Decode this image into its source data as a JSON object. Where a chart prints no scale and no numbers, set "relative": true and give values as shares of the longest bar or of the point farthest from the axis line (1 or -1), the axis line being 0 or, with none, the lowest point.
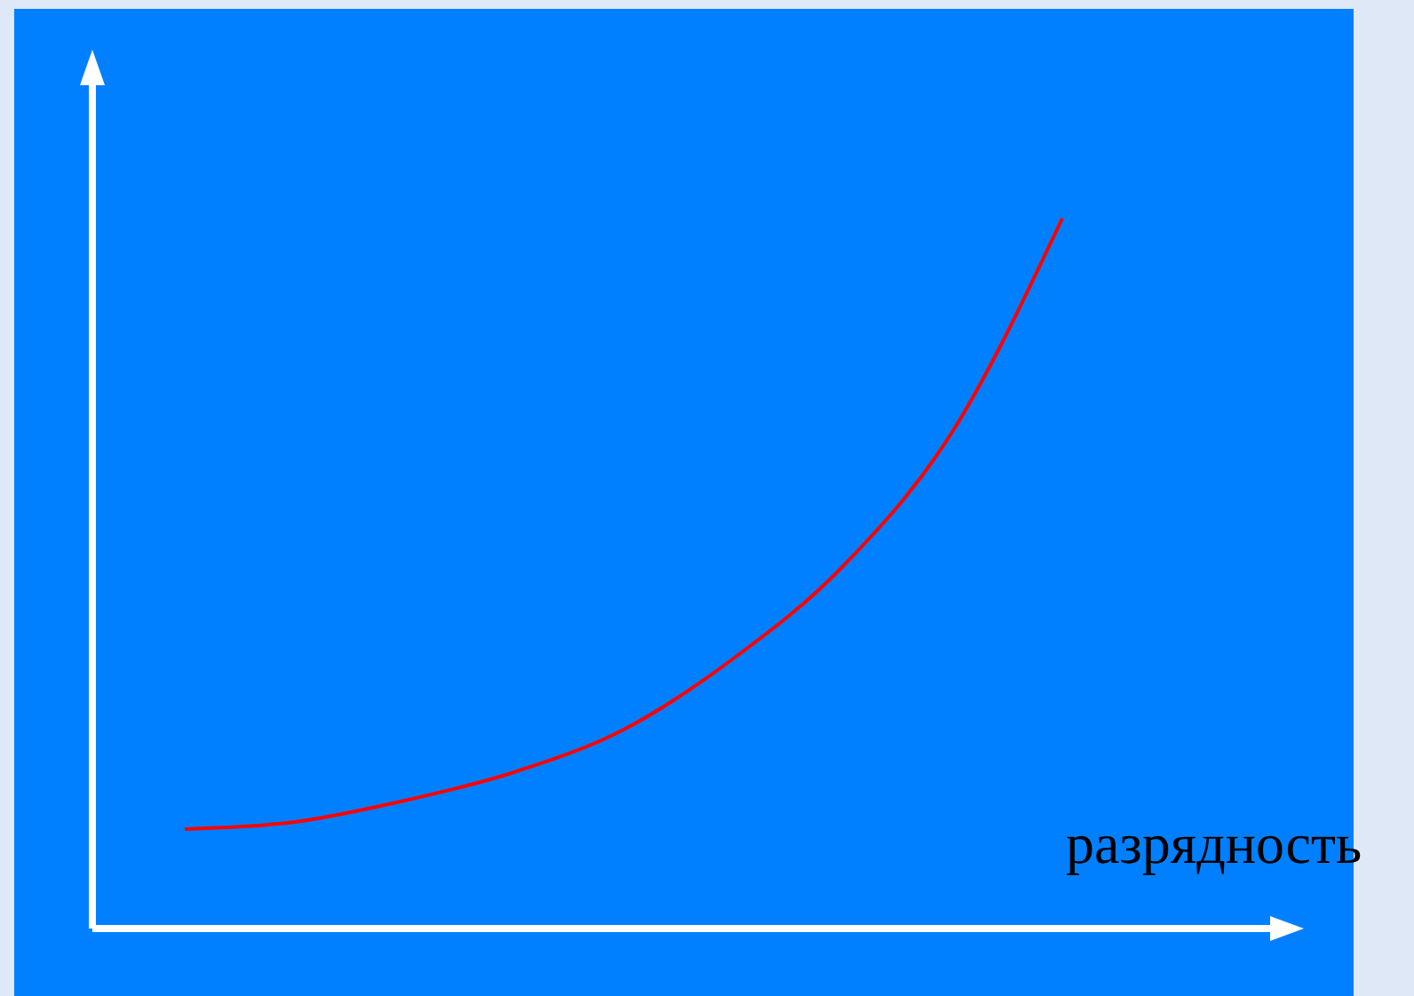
{
  "chart_data": {
    "type": "line",
    "xlabel": "разрядность",
    "relative": true,
    "categories": [
      null,
      null,
      null,
      null,
      null,
      null,
      null,
      null,
      null
    ],
    "series": [
      {
        "color": "#ff0000",
        "values": [
          0.14,
          0.15,
          0.18,
          0.22,
          0.28,
          0.38,
          0.51,
          0.7,
          1.0
        ]
      }
    ]
  }
}
